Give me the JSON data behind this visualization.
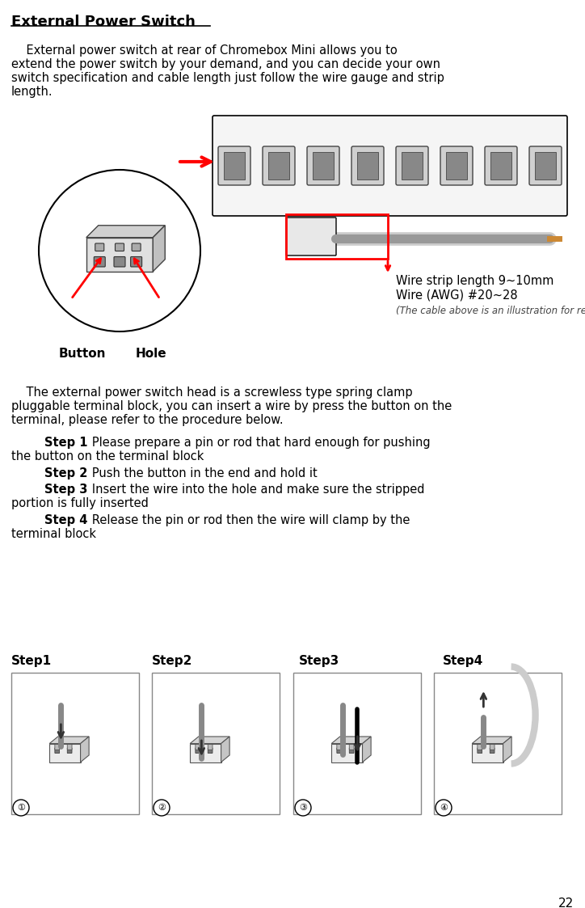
{
  "title": "External Power Switch",
  "page_number": "22",
  "para1": "    External power switch at rear of Chromebox Mini allows you to extend the power switch by your demand, and you can decide your own switch specification and cable length just follow the wire gauge and strip length.",
  "para2": "    The external power switch head is a screwless type spring clamp pluggable terminal block, you can insert a wire by press the button on the terminal, please refer to the procedure below.",
  "step1_bold": "Step 1",
  "step1_text": "   Please prepare a pin or rod that hard enough for pushing the button on the terminal block",
  "step2_bold": "Step 2",
  "step2_text": "   Push the button in the end and hold it",
  "step3_bold": "Step 3",
  "step3_text": "   Insert the wire into the hole and make sure the stripped portion is fully inserted",
  "step4_bold": "Step 4",
  "step4_text": "   Release the pin or rod then the wire will clamp by the terminal block",
  "wire_strip": "Wire strip length 9~10mm",
  "wire_awg": "Wire (AWG) #20~28",
  "cable_note": "(The cable above is an illustration for reference only)",
  "button_label": "Button",
  "hole_label": "Hole",
  "step_labels": [
    "Step1",
    "Step2",
    "Step3",
    "Step4"
  ],
  "step_numbers": [
    "①",
    "②",
    "③",
    "④"
  ],
  "bg_color": "#ffffff",
  "text_color": "#000000",
  "font_family": "DejaVu Sans",
  "title_fontsize": 13,
  "body_fontsize": 10.5,
  "step_label_fontsize": 11
}
